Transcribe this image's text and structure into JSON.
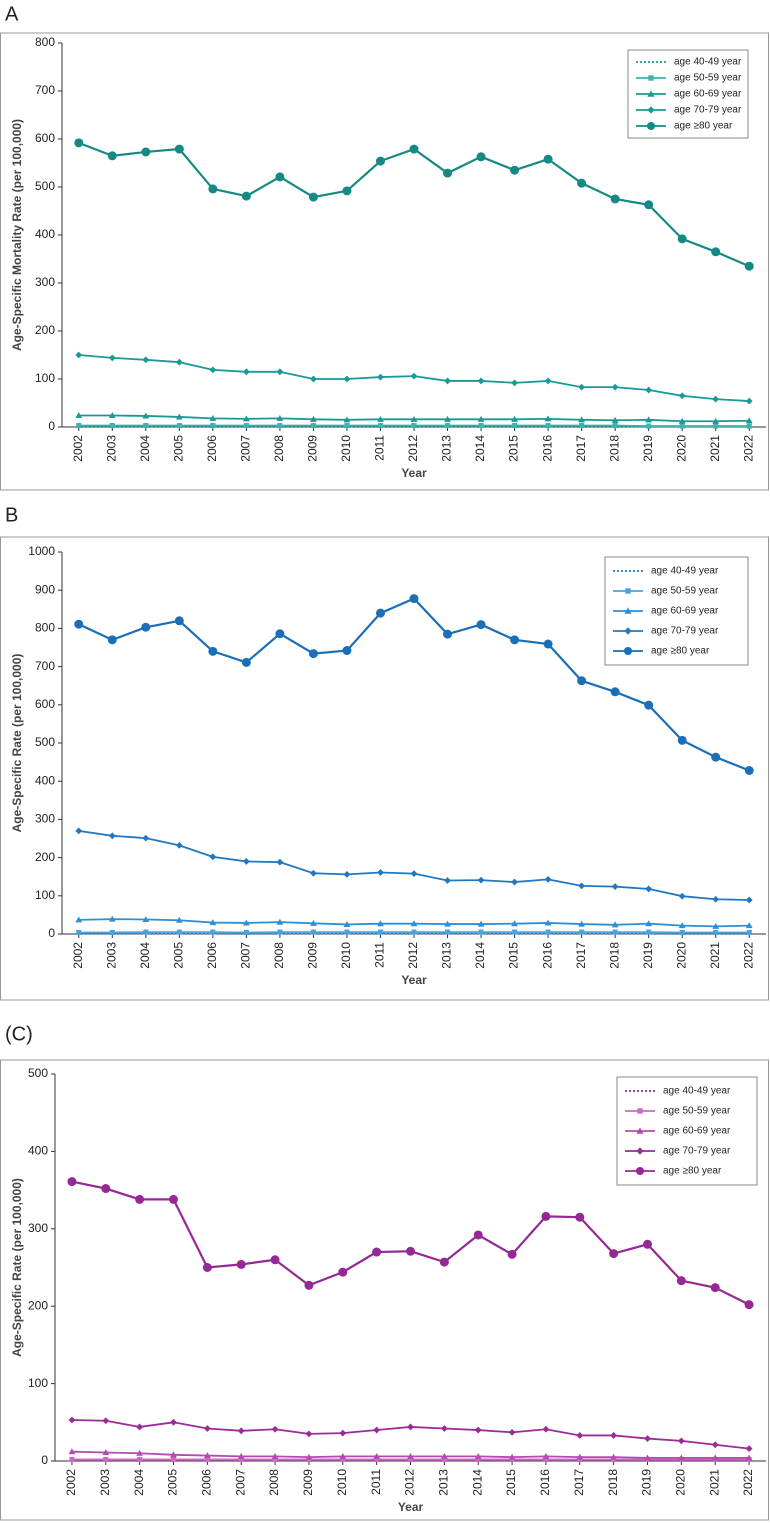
{
  "chart_data": [
    {
      "type": "line",
      "panel_label": "A",
      "x_label": "Year",
      "y_label": "Age-Specific Mortality Rate (per 100,000)",
      "categories": [
        "2002",
        "2003",
        "2004",
        "2005",
        "2006",
        "2007",
        "2008",
        "2009",
        "2010",
        "2011",
        "2012",
        "2013",
        "2014",
        "2015",
        "2016",
        "2017",
        "2018",
        "2019",
        "2020",
        "2021",
        "2022"
      ],
      "ylim": [
        0,
        800
      ],
      "yticks": [
        0,
        100,
        200,
        300,
        400,
        500,
        600,
        700,
        800
      ],
      "legend": "upper right",
      "series": [
        {
          "name": "age 40-49 year",
          "color": "#1a9a96",
          "marker": "none",
          "dash": "dotted",
          "values": [
            1,
            1,
            1,
            1,
            1,
            1,
            1,
            1,
            1,
            1,
            1,
            1,
            1,
            1,
            1,
            1,
            1,
            1,
            1,
            1,
            1
          ]
        },
        {
          "name": "age 50-59 year",
          "color": "#3fb3ae",
          "marker": "square",
          "dash": "solid",
          "values": [
            3,
            3,
            3,
            3,
            3,
            3,
            3,
            3,
            3,
            3,
            3,
            3,
            3,
            3,
            3,
            3,
            3,
            2,
            2,
            2,
            2
          ]
        },
        {
          "name": "age 60-69 year",
          "color": "#1a9a96",
          "marker": "triangle",
          "dash": "solid",
          "values": [
            24,
            24,
            23,
            21,
            18,
            17,
            18,
            16,
            15,
            16,
            16,
            16,
            16,
            16,
            17,
            15,
            14,
            15,
            12,
            12,
            13
          ]
        },
        {
          "name": "age 70-79 year",
          "color": "#1a9a96",
          "marker": "diamond",
          "dash": "solid",
          "values": [
            150,
            144,
            140,
            135,
            119,
            115,
            115,
            100,
            100,
            104,
            106,
            96,
            96,
            92,
            96,
            83,
            83,
            77,
            65,
            58,
            54
          ]
        },
        {
          "name": "age ≥80 year",
          "color": "#158a84",
          "marker": "circle",
          "dash": "solid",
          "values": [
            592,
            565,
            573,
            579,
            496,
            481,
            521,
            479,
            492,
            554,
            579,
            529,
            563,
            535,
            558,
            508,
            475,
            463,
            392,
            365,
            335
          ]
        }
      ]
    },
    {
      "type": "line",
      "panel_label": "B",
      "x_label": "Year",
      "y_label": "Age-Specific Rate (per 100,000)",
      "categories": [
        "2002",
        "2003",
        "2004",
        "2005",
        "2006",
        "2007",
        "2008",
        "2009",
        "2010",
        "2011",
        "2012",
        "2013",
        "2014",
        "2015",
        "2016",
        "2017",
        "2018",
        "2019",
        "2020",
        "2021",
        "2022"
      ],
      "ylim": [
        0,
        1000
      ],
      "yticks": [
        0,
        100,
        200,
        300,
        400,
        500,
        600,
        700,
        800,
        900,
        1000
      ],
      "legend": "upper right",
      "series": [
        {
          "name": "age 40-49 year",
          "color": "#1f78c1",
          "marker": "none",
          "dash": "dotted",
          "values": [
            1,
            1,
            1,
            1,
            1,
            1,
            1,
            1,
            1,
            1,
            1,
            1,
            1,
            1,
            1,
            1,
            1,
            1,
            1,
            1,
            1
          ]
        },
        {
          "name": "age 50-59 year",
          "color": "#4aa3df",
          "marker": "square",
          "dash": "solid",
          "values": [
            4,
            4,
            5,
            5,
            5,
            4,
            5,
            5,
            5,
            5,
            5,
            5,
            5,
            5,
            5,
            5,
            5,
            5,
            4,
            4,
            4
          ]
        },
        {
          "name": "age 60-69 year",
          "color": "#2d8fd5",
          "marker": "triangle",
          "dash": "solid",
          "values": [
            37,
            39,
            38,
            36,
            30,
            29,
            31,
            28,
            25,
            27,
            27,
            26,
            26,
            27,
            29,
            26,
            24,
            27,
            22,
            20,
            22
          ]
        },
        {
          "name": "age 70-79 year",
          "color": "#1f78c1",
          "marker": "diamond",
          "dash": "solid",
          "values": [
            270,
            257,
            251,
            232,
            202,
            190,
            188,
            159,
            156,
            161,
            158,
            140,
            141,
            136,
            143,
            126,
            124,
            118,
            99,
            91,
            89
          ]
        },
        {
          "name": "age ≥80 year",
          "color": "#1a6fb8",
          "marker": "circle",
          "dash": "solid",
          "values": [
            811,
            770,
            803,
            820,
            740,
            711,
            786,
            734,
            742,
            840,
            878,
            785,
            810,
            770,
            759,
            663,
            634,
            599,
            507,
            463,
            428
          ]
        }
      ]
    },
    {
      "type": "line",
      "panel_label": "(C)",
      "x_label": "Year",
      "y_label": "Age-Specific Rate (per 100,000)",
      "categories": [
        "2002",
        "2003",
        "2004",
        "2005",
        "2006",
        "2007",
        "2008",
        "2009",
        "2010",
        "2011",
        "2012",
        "2013",
        "2014",
        "2015",
        "2016",
        "2017",
        "2018",
        "2019",
        "2020",
        "2021",
        "2022"
      ],
      "ylim": [
        0,
        500
      ],
      "yticks": [
        0,
        100,
        200,
        300,
        400,
        500
      ],
      "legend": "upper right",
      "series": [
        {
          "name": "age 40-49 year",
          "color": "#9c2a99",
          "marker": "none",
          "dash": "dotted",
          "values": [
            1,
            1,
            1,
            1,
            1,
            1,
            1,
            1,
            1,
            1,
            1,
            1,
            1,
            1,
            1,
            1,
            1,
            1,
            1,
            1,
            1
          ]
        },
        {
          "name": "age 50-59 year",
          "color": "#c96bc2",
          "marker": "square",
          "dash": "solid",
          "values": [
            2,
            2,
            2,
            2,
            2,
            2,
            2,
            2,
            2,
            2,
            2,
            2,
            2,
            2,
            2,
            2,
            2,
            2,
            2,
            2,
            2
          ]
        },
        {
          "name": "age 60-69 year",
          "color": "#b44bb0",
          "marker": "triangle",
          "dash": "solid",
          "values": [
            12,
            11,
            10,
            8,
            7,
            6,
            6,
            5,
            6,
            6,
            6,
            6,
            6,
            5,
            6,
            5,
            5,
            4,
            4,
            4,
            4
          ]
        },
        {
          "name": "age 70-79 year",
          "color": "#9c2a99",
          "marker": "diamond",
          "dash": "solid",
          "values": [
            53,
            52,
            44,
            50,
            42,
            39,
            41,
            35,
            36,
            40,
            44,
            42,
            40,
            37,
            41,
            33,
            33,
            29,
            26,
            21,
            16
          ]
        },
        {
          "name": "age ≥80 year",
          "color": "#952894",
          "marker": "circle",
          "dash": "solid",
          "values": [
            361,
            352,
            338,
            338,
            250,
            254,
            260,
            227,
            244,
            270,
            271,
            257,
            292,
            267,
            316,
            315,
            268,
            280,
            233,
            224,
            202
          ]
        }
      ]
    }
  ]
}
